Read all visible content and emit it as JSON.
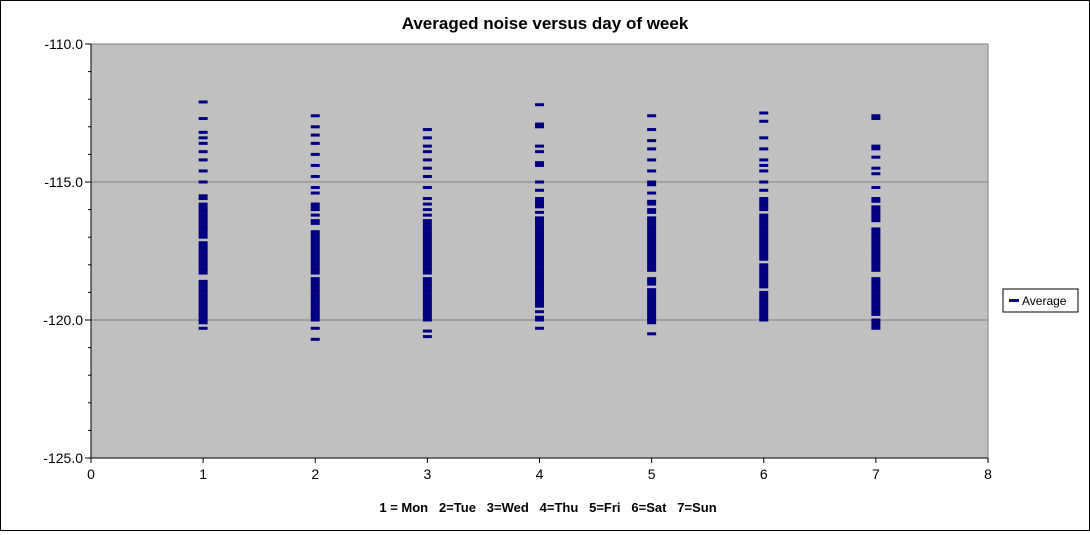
{
  "chart_data": {
    "type": "scatter",
    "title": "Averaged noise versus day of week",
    "xlabel": "1 = Mon   2=Tue   3=Wed   4=Thu   5=Fri   6=Sat   7=Sun",
    "ylabel": "",
    "xlim": [
      0,
      8
    ],
    "ylim": [
      -125,
      -110
    ],
    "x_ticks": [
      0,
      1,
      2,
      3,
      4,
      5,
      6,
      7,
      8
    ],
    "y_ticks": [
      -110,
      -115,
      -120,
      -125
    ],
    "y_tick_labels": [
      "-110.0",
      "-115.0",
      "-120.0",
      "-125.0"
    ],
    "grid": "horizontal major gridlines",
    "legend": "right",
    "plot_background": "#c0c0c0",
    "marker_color": "#000080",
    "series": [
      {
        "name": "Average",
        "points_by_day": [
          {
            "x": 1,
            "y": [
              -112.1,
              -112.7,
              -113.2,
              -113.4,
              -113.6,
              -113.9,
              -114.2,
              -114.6,
              -115.0,
              -115.5,
              -115.6,
              -115.8,
              -115.9,
              -116.0,
              -116.1,
              -116.2,
              -116.3,
              -116.4,
              -116.5,
              -116.6,
              -116.7,
              -116.8,
              -116.9,
              -117.0,
              -117.2,
              -117.3,
              -117.4,
              -117.5,
              -117.6,
              -117.7,
              -117.8,
              -117.9,
              -118.0,
              -118.1,
              -118.2,
              -118.3,
              -118.6,
              -118.7,
              -118.8,
              -118.9,
              -119.0,
              -119.1,
              -119.2,
              -119.3,
              -119.4,
              -119.5,
              -119.6,
              -119.7,
              -119.8,
              -119.9,
              -120.0,
              -120.1,
              -120.3
            ]
          },
          {
            "x": 2,
            "y": [
              -112.6,
              -113.0,
              -113.3,
              -113.6,
              -114.0,
              -114.4,
              -114.8,
              -115.2,
              -115.4,
              -115.8,
              -115.9,
              -116.0,
              -116.2,
              -116.4,
              -116.5,
              -116.8,
              -116.9,
              -117.0,
              -117.1,
              -117.2,
              -117.3,
              -117.4,
              -117.5,
              -117.6,
              -117.7,
              -117.8,
              -117.9,
              -118.0,
              -118.1,
              -118.2,
              -118.3,
              -118.5,
              -118.6,
              -118.7,
              -118.8,
              -118.9,
              -119.0,
              -119.1,
              -119.2,
              -119.3,
              -119.4,
              -119.5,
              -119.6,
              -119.7,
              -119.8,
              -119.9,
              -120.0,
              -120.3,
              -120.7
            ]
          },
          {
            "x": 3,
            "y": [
              -113.1,
              -113.4,
              -113.7,
              -113.9,
              -114.2,
              -114.5,
              -114.8,
              -115.2,
              -115.6,
              -115.8,
              -116.0,
              -116.2,
              -116.4,
              -116.5,
              -116.6,
              -116.7,
              -116.8,
              -116.9,
              -117.0,
              -117.1,
              -117.2,
              -117.3,
              -117.4,
              -117.5,
              -117.6,
              -117.7,
              -117.8,
              -117.9,
              -118.0,
              -118.1,
              -118.2,
              -118.3,
              -118.5,
              -118.6,
              -118.7,
              -118.8,
              -118.9,
              -119.0,
              -119.1,
              -119.2,
              -119.3,
              -119.4,
              -119.5,
              -119.6,
              -119.7,
              -119.8,
              -119.9,
              -120.0,
              -120.4,
              -120.6
            ]
          },
          {
            "x": 4,
            "y": [
              -112.2,
              -112.9,
              -113.0,
              -113.7,
              -113.9,
              -114.3,
              -114.4,
              -115.0,
              -115.3,
              -115.6,
              -115.7,
              -115.8,
              -115.9,
              -116.1,
              -116.3,
              -116.4,
              -116.5,
              -116.6,
              -116.7,
              -116.8,
              -116.9,
              -117.0,
              -117.1,
              -117.2,
              -117.3,
              -117.4,
              -117.5,
              -117.6,
              -117.7,
              -117.8,
              -117.9,
              -118.0,
              -118.1,
              -118.2,
              -118.3,
              -118.4,
              -118.5,
              -118.6,
              -118.7,
              -118.8,
              -118.9,
              -119.0,
              -119.1,
              -119.2,
              -119.3,
              -119.4,
              -119.5,
              -119.7,
              -119.9,
              -120.0,
              -120.3
            ]
          },
          {
            "x": 5,
            "y": [
              -112.6,
              -113.1,
              -113.5,
              -113.8,
              -114.2,
              -114.6,
              -115.0,
              -115.1,
              -115.4,
              -115.7,
              -115.8,
              -116.0,
              -116.1,
              -116.3,
              -116.4,
              -116.5,
              -116.6,
              -116.7,
              -116.8,
              -116.9,
              -117.0,
              -117.1,
              -117.2,
              -117.3,
              -117.4,
              -117.5,
              -117.6,
              -117.7,
              -117.8,
              -117.9,
              -118.0,
              -118.1,
              -118.2,
              -118.5,
              -118.6,
              -118.7,
              -118.9,
              -119.0,
              -119.1,
              -119.2,
              -119.3,
              -119.4,
              -119.5,
              -119.6,
              -119.7,
              -119.8,
              -119.9,
              -120.0,
              -120.1,
              -120.5
            ]
          },
          {
            "x": 6,
            "y": [
              -112.5,
              -112.8,
              -113.4,
              -113.8,
              -114.2,
              -114.4,
              -114.6,
              -115.0,
              -115.3,
              -115.6,
              -115.7,
              -115.8,
              -115.9,
              -116.0,
              -116.2,
              -116.3,
              -116.4,
              -116.5,
              -116.6,
              -116.7,
              -116.8,
              -116.9,
              -117.0,
              -117.1,
              -117.2,
              -117.3,
              -117.4,
              -117.5,
              -117.6,
              -117.7,
              -117.8,
              -118.0,
              -118.1,
              -118.2,
              -118.3,
              -118.4,
              -118.5,
              -118.6,
              -118.7,
              -118.8,
              -119.0,
              -119.1,
              -119.2,
              -119.3,
              -119.4,
              -119.5,
              -119.6,
              -119.7,
              -119.8,
              -119.9,
              -120.0
            ]
          },
          {
            "x": 7,
            "y": [
              -112.6,
              -112.7,
              -113.7,
              -113.8,
              -114.1,
              -114.5,
              -114.7,
              -115.2,
              -115.6,
              -115.7,
              -115.9,
              -116.0,
              -116.1,
              -116.2,
              -116.3,
              -116.4,
              -116.7,
              -116.8,
              -116.9,
              -117.0,
              -117.1,
              -117.2,
              -117.3,
              -117.4,
              -117.5,
              -117.6,
              -117.7,
              -117.8,
              -117.9,
              -118.0,
              -118.1,
              -118.2,
              -118.5,
              -118.6,
              -118.7,
              -118.8,
              -118.9,
              -119.0,
              -119.1,
              -119.2,
              -119.3,
              -119.4,
              -119.5,
              -119.6,
              -119.7,
              -119.8,
              -120.0,
              -120.1,
              -120.2,
              -120.3
            ]
          }
        ]
      }
    ]
  }
}
